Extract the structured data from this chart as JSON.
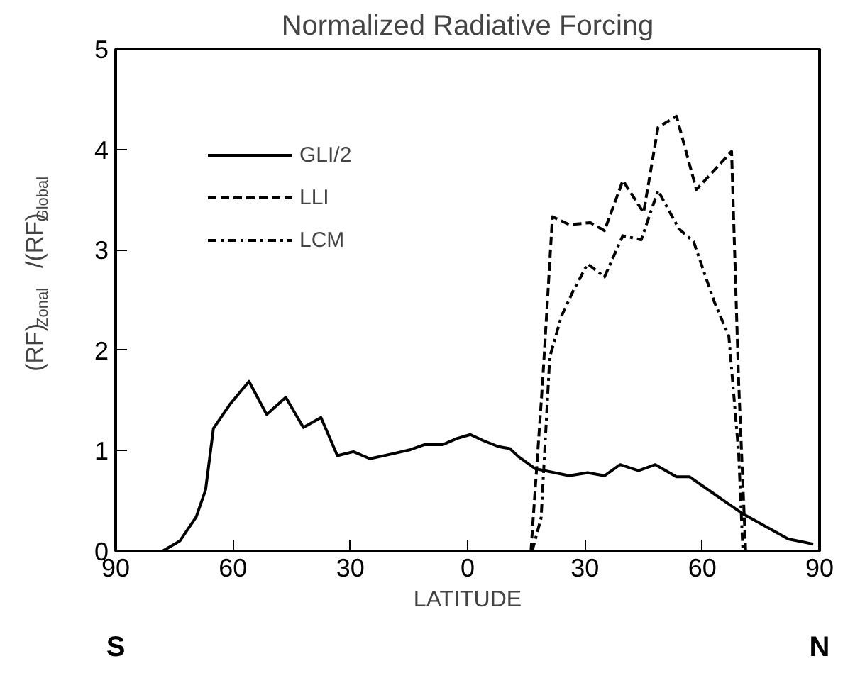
{
  "chart_data": {
    "type": "line",
    "title": "Normalized Radiative Forcing",
    "xlabel": "LATITUDE",
    "ylabel": "(RF)$_{Zonal}$ /(RF)$_{Global}$",
    "xlim": [
      -90,
      90
    ],
    "ylim": [
      0,
      5
    ],
    "xticks": [
      {
        "value": -90,
        "label": "90"
      },
      {
        "value": -60,
        "label": "60"
      },
      {
        "value": -30,
        "label": "30"
      },
      0,
      {
        "value": 30,
        "label": "30"
      },
      {
        "value": 60,
        "label": "60"
      },
      90
    ],
    "yticks": [
      0,
      1,
      2,
      3,
      4,
      5
    ],
    "grid": false,
    "legend": "top left",
    "marker": "none",
    "annotations": [
      "S",
      "N"
    ],
    "series": [
      {
        "name": "GLI/2",
        "color": "#000000",
        "line_style": "solid",
        "x": [
          -78,
          -73.6,
          -69.4,
          -67,
          -65,
          -60.8,
          -55.9,
          -51.4,
          -46.5,
          -42,
          -37.5,
          -33.3,
          -29.2,
          -25,
          -19,
          -14.6,
          -11,
          -6.3,
          -2.8,
          0.7,
          4,
          7.9,
          10.8,
          13,
          17.3,
          26,
          30.7,
          35,
          39,
          43.7,
          48,
          53.4,
          56.7,
          70.4,
          82,
          88.4
        ],
        "values": [
          0,
          0.1,
          0.34,
          0.61,
          1.22,
          1.46,
          1.69,
          1.36,
          1.53,
          1.23,
          1.33,
          0.95,
          0.99,
          0.92,
          0.97,
          1.01,
          1.06,
          1.06,
          1.12,
          1.16,
          1.1,
          1.04,
          1.02,
          0.94,
          0.82,
          0.75,
          0.78,
          0.75,
          0.86,
          0.8,
          0.86,
          0.74,
          0.74,
          0.37,
          0.12,
          0.07
        ]
      },
      {
        "name": "LLI",
        "color": "#000000",
        "line_style": "dashed",
        "x": [
          16.2,
          19.2,
          21.7,
          26,
          31.4,
          35,
          39.7,
          45,
          48.7,
          53.4,
          58.5,
          67.5,
          69.3,
          71.1
        ],
        "values": [
          0,
          1.7,
          3.33,
          3.25,
          3.27,
          3.19,
          3.69,
          3.37,
          4.22,
          4.33,
          3.6,
          3.98,
          1.69,
          0
        ]
      },
      {
        "name": "LCM",
        "color": "#000000",
        "line_style": "dashdot",
        "x": [
          16.5,
          18.8,
          21,
          24,
          27,
          30.7,
          35,
          39.7,
          44.4,
          48.7,
          54,
          57.8,
          63,
          66.8,
          69.3,
          70.4
        ],
        "values": [
          0,
          0.33,
          1.93,
          2.34,
          2.59,
          2.86,
          2.73,
          3.14,
          3.1,
          3.59,
          3.21,
          3.08,
          2.49,
          2.14,
          0.98,
          0
        ]
      }
    ]
  }
}
